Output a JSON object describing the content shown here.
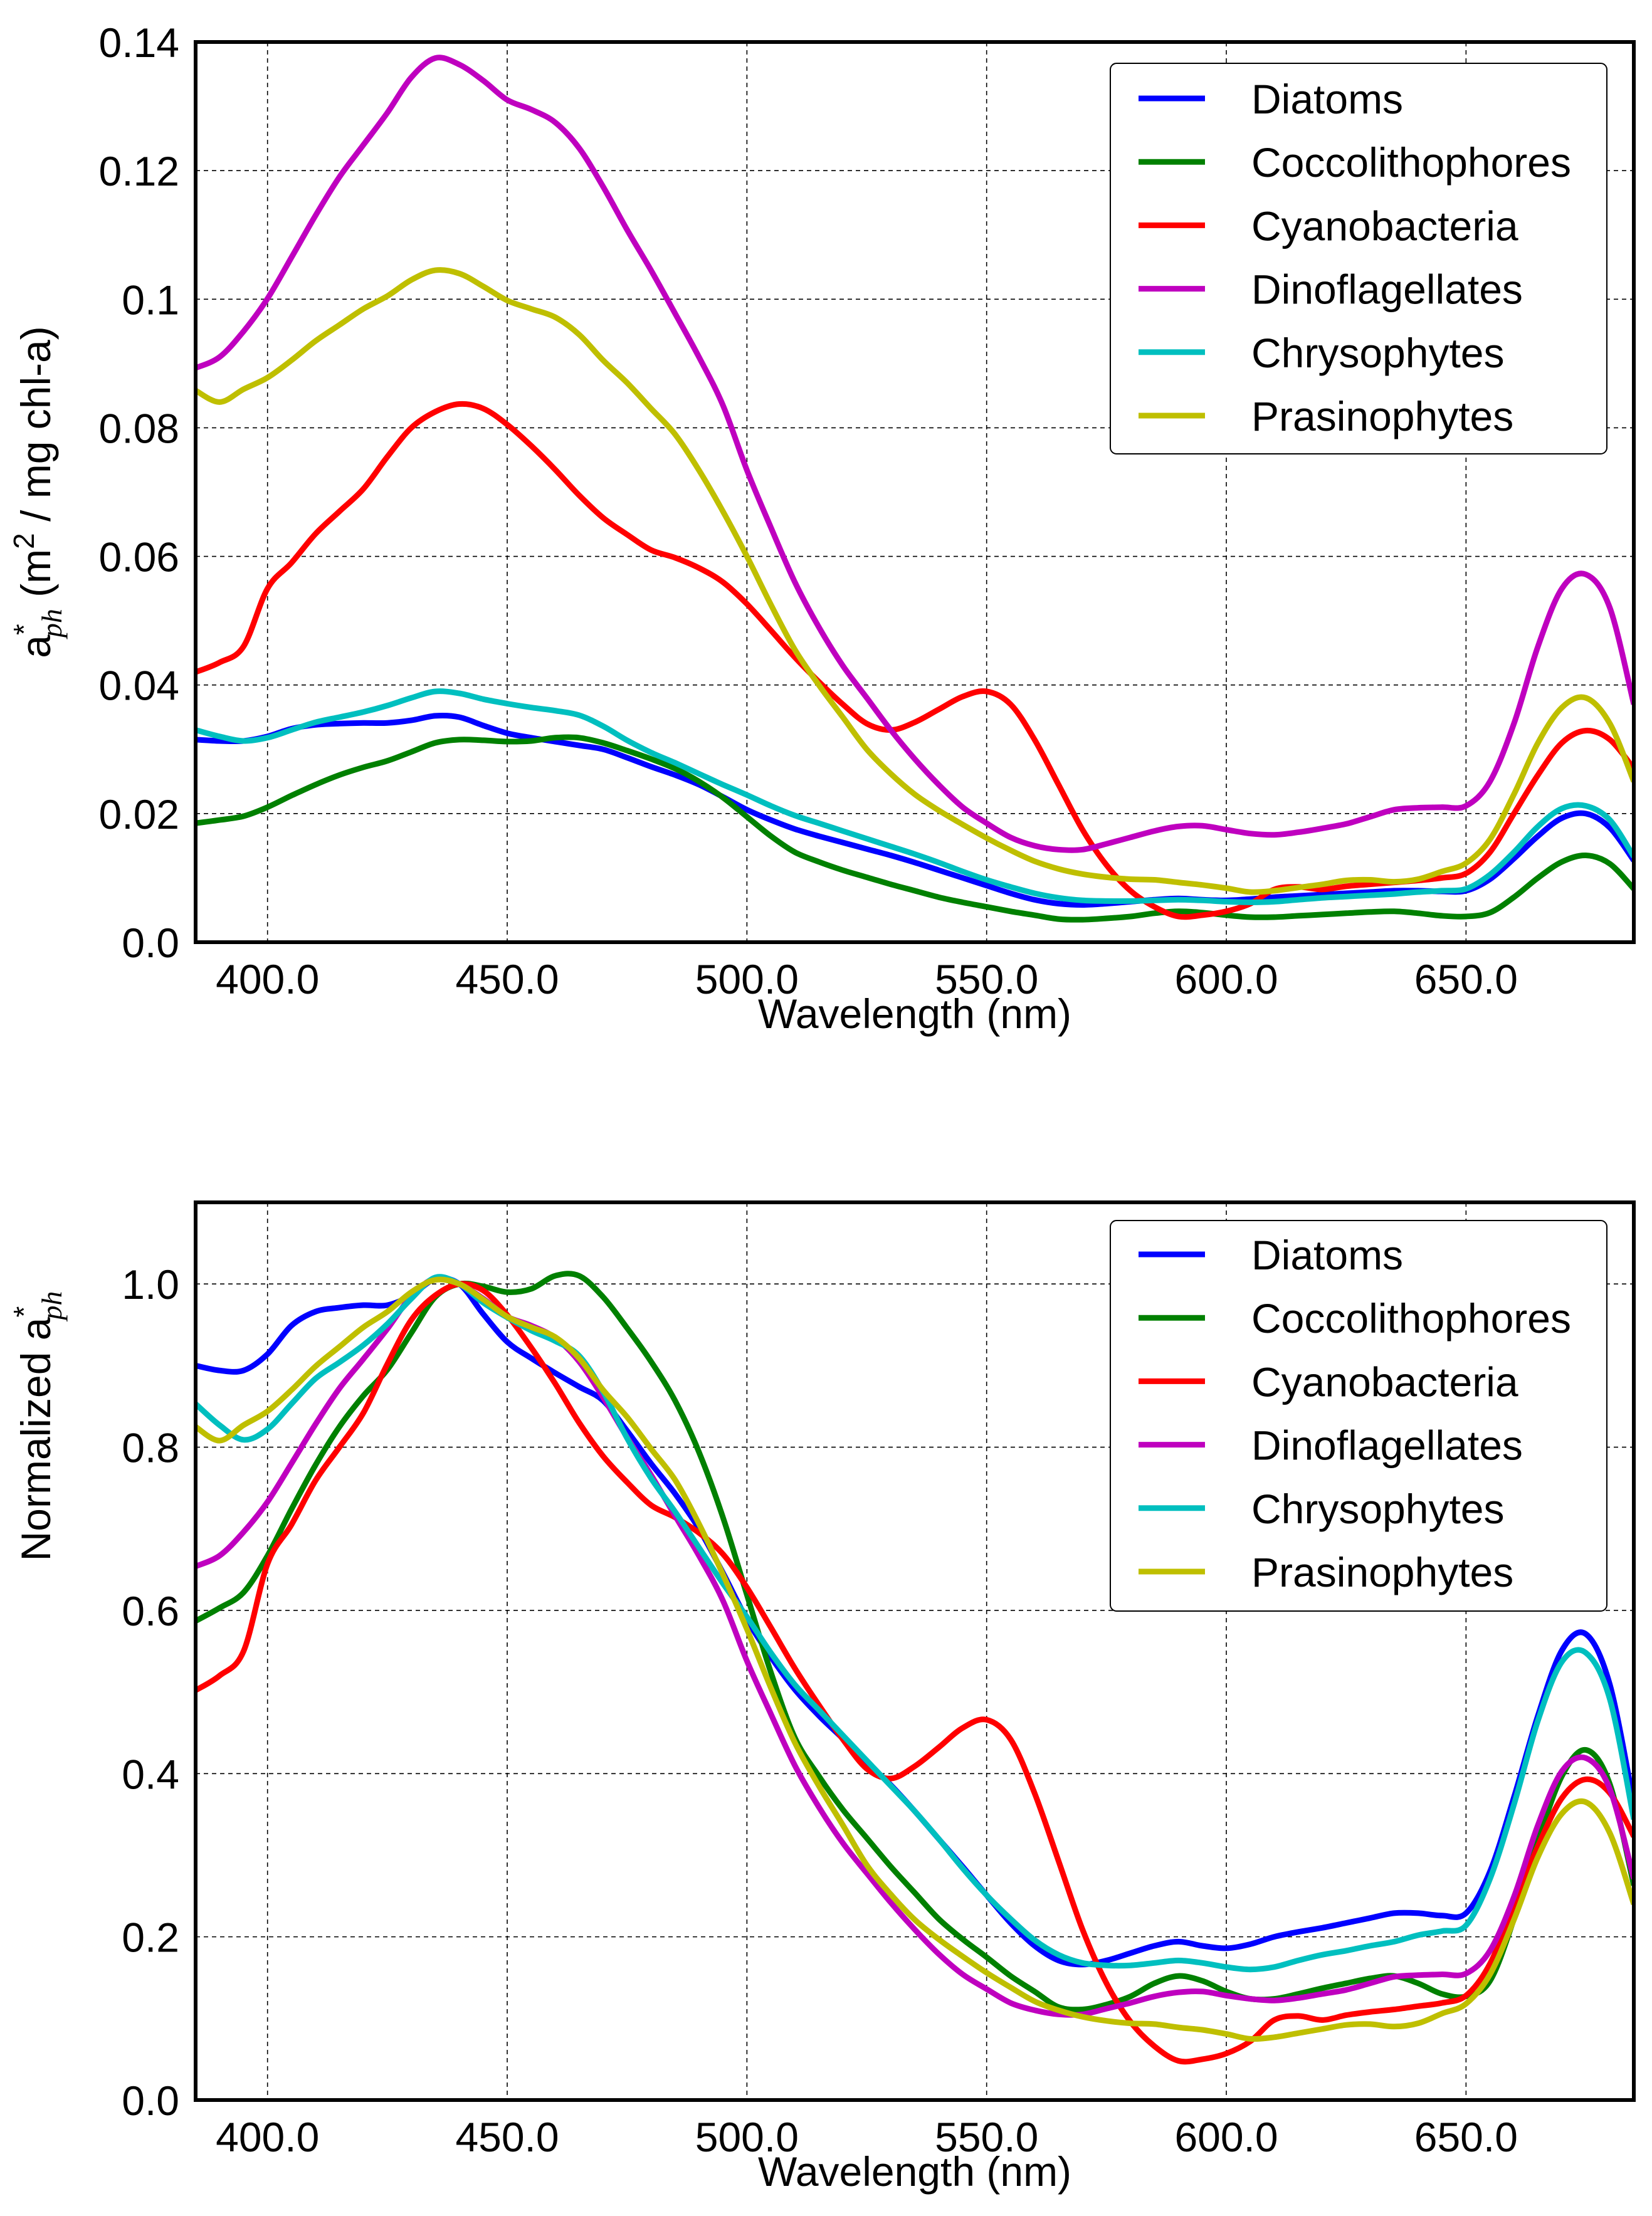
{
  "chart_data": [
    {
      "type": "line",
      "title": "",
      "xlabel": "Wavelength (nm)",
      "ylabel": "a*_ph (m^2 / mg chl-a)",
      "ylabel_parts": {
        "main": "a",
        "sup": "*",
        "sub": "ph",
        "rest": " (m",
        "unit_sup": "2",
        "tail": " / mg chl-a)"
      },
      "xlim": [
        385,
        685
      ],
      "ylim": [
        0,
        0.14
      ],
      "xticks": [
        400,
        450,
        500,
        550,
        600,
        650
      ],
      "xtick_labels": [
        "400.0",
        "450.0",
        "500.0",
        "550.0",
        "600.0",
        "650.0"
      ],
      "yticks": [
        0,
        0.02,
        0.04,
        0.06,
        0.08,
        0.1,
        0.12,
        0.14
      ],
      "ytick_labels": [
        "0.0",
        "0.02",
        "0.04",
        "0.06",
        "0.08",
        "0.1",
        "0.12",
        "0.14"
      ],
      "grid": true,
      "legend_position": "top-right",
      "x": [
        385,
        390,
        395,
        400,
        405,
        410,
        415,
        420,
        425,
        430,
        435,
        440,
        445,
        450,
        455,
        460,
        465,
        470,
        475,
        480,
        485,
        490,
        495,
        500,
        505,
        510,
        515,
        520,
        525,
        530,
        535,
        540,
        545,
        550,
        555,
        560,
        565,
        570,
        575,
        580,
        585,
        590,
        595,
        600,
        605,
        610,
        615,
        620,
        625,
        630,
        635,
        640,
        645,
        650,
        655,
        660,
        665,
        670,
        675,
        680,
        685
      ],
      "series": [
        {
          "name": "Diatoms",
          "color": "#0000ff",
          "values": [
            0.0315,
            0.0313,
            0.0313,
            0.032,
            0.0332,
            0.0338,
            0.034,
            0.0341,
            0.0341,
            0.0345,
            0.0352,
            0.035,
            0.0337,
            0.0325,
            0.0318,
            0.0312,
            0.0306,
            0.03,
            0.0287,
            0.0273,
            0.026,
            0.0245,
            0.0226,
            0.0206,
            0.019,
            0.0176,
            0.0165,
            0.0155,
            0.0145,
            0.0135,
            0.0124,
            0.0112,
            0.01,
            0.0088,
            0.0076,
            0.0066,
            0.006,
            0.0058,
            0.006,
            0.0063,
            0.0066,
            0.0068,
            0.0066,
            0.0065,
            0.0067,
            0.007,
            0.0072,
            0.0074,
            0.0076,
            0.0078,
            0.008,
            0.008,
            0.0079,
            0.008,
            0.0098,
            0.013,
            0.0165,
            0.0193,
            0.02,
            0.0178,
            0.0127
          ]
        },
        {
          "name": "Coccolithophores",
          "color": "#008000",
          "values": [
            0.0185,
            0.019,
            0.0196,
            0.021,
            0.0228,
            0.0245,
            0.026,
            0.0272,
            0.0282,
            0.0296,
            0.031,
            0.0315,
            0.0314,
            0.0312,
            0.0313,
            0.0318,
            0.0318,
            0.031,
            0.0298,
            0.0285,
            0.027,
            0.025,
            0.0225,
            0.0195,
            0.0165,
            0.014,
            0.0125,
            0.0112,
            0.0101,
            0.009,
            0.008,
            0.007,
            0.0062,
            0.0055,
            0.0048,
            0.0042,
            0.0036,
            0.0035,
            0.0037,
            0.004,
            0.0045,
            0.0048,
            0.0046,
            0.0042,
            0.0039,
            0.0039,
            0.0041,
            0.0043,
            0.0045,
            0.0047,
            0.0048,
            0.0045,
            0.0041,
            0.004,
            0.0046,
            0.007,
            0.01,
            0.0125,
            0.0135,
            0.0122,
            0.0083
          ]
        },
        {
          "name": "Cyanobacteria",
          "color": "#ff0000",
          "values": [
            0.042,
            0.0435,
            0.046,
            0.055,
            0.059,
            0.0635,
            0.067,
            0.0705,
            0.0755,
            0.08,
            0.0825,
            0.0837,
            0.083,
            0.0805,
            0.0772,
            0.0735,
            0.0695,
            0.066,
            0.0634,
            0.061,
            0.0598,
            0.0582,
            0.056,
            0.0526,
            0.0485,
            0.0443,
            0.0405,
            0.037,
            0.034,
            0.033,
            0.0342,
            0.0362,
            0.0382,
            0.039,
            0.037,
            0.0315,
            0.0245,
            0.0175,
            0.012,
            0.008,
            0.0055,
            0.004,
            0.0042,
            0.0048,
            0.006,
            0.0082,
            0.0086,
            0.0082,
            0.0087,
            0.009,
            0.0093,
            0.0096,
            0.01,
            0.0107,
            0.014,
            0.02,
            0.026,
            0.031,
            0.0329,
            0.0315,
            0.027
          ]
        },
        {
          "name": "Dinoflagellates",
          "color": "#bf00bf",
          "values": [
            0.0893,
            0.091,
            0.095,
            0.1001,
            0.1065,
            0.113,
            0.119,
            0.124,
            0.129,
            0.1345,
            0.1375,
            0.1365,
            0.134,
            0.131,
            0.1295,
            0.1275,
            0.1235,
            0.1175,
            0.1108,
            0.1045,
            0.0978,
            0.091,
            0.0835,
            0.0734,
            0.0645,
            0.056,
            0.049,
            0.043,
            0.038,
            0.033,
            0.0285,
            0.0245,
            0.021,
            0.0185,
            0.0163,
            0.015,
            0.0144,
            0.0144,
            0.0153,
            0.0163,
            0.0173,
            0.018,
            0.0181,
            0.0175,
            0.0169,
            0.0167,
            0.0171,
            0.0177,
            0.0184,
            0.0195,
            0.0206,
            0.0209,
            0.021,
            0.0212,
            0.025,
            0.034,
            0.046,
            0.055,
            0.0572,
            0.052,
            0.037
          ]
        },
        {
          "name": "Chrysophytes",
          "color": "#00bfbf",
          "values": [
            0.033,
            0.032,
            0.0313,
            0.0318,
            0.033,
            0.0342,
            0.035,
            0.0358,
            0.0368,
            0.038,
            0.039,
            0.0387,
            0.0378,
            0.0371,
            0.0365,
            0.036,
            0.0353,
            0.0336,
            0.0314,
            0.0295,
            0.0279,
            0.0262,
            0.0245,
            0.0229,
            0.0212,
            0.0197,
            0.0185,
            0.0173,
            0.0161,
            0.0149,
            0.0137,
            0.0124,
            0.011,
            0.0097,
            0.0086,
            0.0076,
            0.0069,
            0.0065,
            0.0064,
            0.0064,
            0.0065,
            0.0066,
            0.0065,
            0.0063,
            0.0062,
            0.0063,
            0.0066,
            0.0069,
            0.0071,
            0.0073,
            0.0075,
            0.0078,
            0.008,
            0.0083,
            0.0105,
            0.014,
            0.018,
            0.0208,
            0.0212,
            0.019,
            0.0133
          ]
        },
        {
          "name": "Prasinophytes",
          "color": "#bfbf00",
          "values": [
            0.0858,
            0.084,
            0.086,
            0.0878,
            0.0905,
            0.0935,
            0.096,
            0.0985,
            0.1005,
            0.103,
            0.1045,
            0.104,
            0.102,
            0.0998,
            0.0985,
            0.0972,
            0.0945,
            0.0905,
            0.087,
            0.083,
            0.079,
            0.0734,
            0.067,
            0.06,
            0.0525,
            0.0455,
            0.04,
            0.035,
            0.03,
            0.0262,
            0.023,
            0.0205,
            0.0183,
            0.0162,
            0.0143,
            0.0126,
            0.0114,
            0.0106,
            0.0101,
            0.0098,
            0.0097,
            0.0093,
            0.0089,
            0.0084,
            0.0078,
            0.008,
            0.0085,
            0.009,
            0.0096,
            0.0097,
            0.0094,
            0.0098,
            0.011,
            0.0123,
            0.016,
            0.023,
            0.031,
            0.0365,
            0.038,
            0.034,
            0.025
          ]
        }
      ]
    },
    {
      "type": "line",
      "title": "",
      "xlabel": "Wavelength (nm)",
      "ylabel": "Normalized a*_ph",
      "ylabel_parts": {
        "main": "Normalized a",
        "sup": "*",
        "sub": "ph"
      },
      "xlim": [
        385,
        685
      ],
      "ylim": [
        0,
        1.1
      ],
      "xticks": [
        400,
        450,
        500,
        550,
        600,
        650
      ],
      "xtick_labels": [
        "400.0",
        "450.0",
        "500.0",
        "550.0",
        "600.0",
        "650.0"
      ],
      "yticks": [
        0,
        0.2,
        0.4,
        0.6,
        0.8,
        1.0
      ],
      "ytick_labels": [
        "0.0",
        "0.2",
        "0.4",
        "0.6",
        "0.8",
        "1.0"
      ],
      "grid": true,
      "legend_position": "top-right",
      "x": [
        385,
        390,
        395,
        400,
        405,
        410,
        415,
        420,
        425,
        430,
        435,
        440,
        445,
        450,
        455,
        460,
        465,
        470,
        475,
        480,
        485,
        490,
        495,
        500,
        505,
        510,
        515,
        520,
        525,
        530,
        535,
        540,
        545,
        550,
        555,
        560,
        565,
        570,
        575,
        580,
        585,
        590,
        595,
        600,
        605,
        610,
        615,
        620,
        625,
        630,
        635,
        640,
        645,
        650,
        655,
        660,
        665,
        670,
        675,
        680,
        685
      ],
      "series": [
        {
          "name": "Diatoms",
          "color": "#0000ff",
          "values": [
            0.9,
            0.894,
            0.894,
            0.914,
            0.949,
            0.966,
            0.971,
            0.974,
            0.974,
            0.986,
            1.006,
            1.0,
            0.963,
            0.929,
            0.909,
            0.891,
            0.874,
            0.857,
            0.82,
            0.78,
            0.743,
            0.7,
            0.646,
            0.589,
            0.543,
            0.503,
            0.471,
            0.443,
            0.414,
            0.386,
            0.354,
            0.32,
            0.286,
            0.251,
            0.217,
            0.189,
            0.171,
            0.166,
            0.171,
            0.18,
            0.189,
            0.194,
            0.189,
            0.186,
            0.191,
            0.2,
            0.206,
            0.211,
            0.217,
            0.223,
            0.229,
            0.229,
            0.226,
            0.229,
            0.28,
            0.371,
            0.471,
            0.551,
            0.571,
            0.509,
            0.363
          ]
        },
        {
          "name": "Coccolithophores",
          "color": "#008000",
          "values": [
            0.587,
            0.603,
            0.622,
            0.667,
            0.724,
            0.778,
            0.825,
            0.863,
            0.895,
            0.94,
            0.984,
            1.0,
            0.997,
            0.99,
            0.994,
            1.01,
            1.01,
            0.984,
            0.946,
            0.905,
            0.857,
            0.794,
            0.714,
            0.619,
            0.524,
            0.444,
            0.397,
            0.356,
            0.321,
            0.286,
            0.254,
            0.222,
            0.197,
            0.175,
            0.152,
            0.133,
            0.114,
            0.111,
            0.117,
            0.127,
            0.143,
            0.152,
            0.146,
            0.133,
            0.124,
            0.124,
            0.13,
            0.137,
            0.143,
            0.149,
            0.152,
            0.143,
            0.13,
            0.127,
            0.146,
            0.222,
            0.317,
            0.397,
            0.429,
            0.387,
            0.263
          ]
        },
        {
          "name": "Cyanobacteria",
          "color": "#ff0000",
          "values": [
            0.502,
            0.52,
            0.55,
            0.657,
            0.705,
            0.759,
            0.8,
            0.842,
            0.902,
            0.956,
            0.986,
            1.0,
            0.992,
            0.962,
            0.922,
            0.878,
            0.83,
            0.789,
            0.757,
            0.729,
            0.714,
            0.695,
            0.669,
            0.628,
            0.579,
            0.529,
            0.484,
            0.442,
            0.406,
            0.394,
            0.409,
            0.432,
            0.456,
            0.466,
            0.442,
            0.376,
            0.293,
            0.209,
            0.143,
            0.096,
            0.066,
            0.048,
            0.05,
            0.057,
            0.072,
            0.098,
            0.103,
            0.098,
            0.104,
            0.108,
            0.111,
            0.115,
            0.119,
            0.128,
            0.167,
            0.239,
            0.311,
            0.37,
            0.393,
            0.376,
            0.323
          ]
        },
        {
          "name": "Dinoflagellates",
          "color": "#bf00bf",
          "values": [
            0.654,
            0.667,
            0.696,
            0.733,
            0.78,
            0.828,
            0.872,
            0.908,
            0.945,
            0.985,
            1.007,
            1.0,
            0.982,
            0.96,
            0.949,
            0.934,
            0.905,
            0.861,
            0.812,
            0.766,
            0.716,
            0.667,
            0.612,
            0.538,
            0.473,
            0.41,
            0.359,
            0.315,
            0.278,
            0.242,
            0.209,
            0.179,
            0.154,
            0.136,
            0.119,
            0.11,
            0.105,
            0.105,
            0.112,
            0.119,
            0.127,
            0.132,
            0.133,
            0.128,
            0.124,
            0.122,
            0.125,
            0.13,
            0.135,
            0.143,
            0.151,
            0.153,
            0.154,
            0.155,
            0.183,
            0.249,
            0.337,
            0.403,
            0.419,
            0.381,
            0.271
          ]
        },
        {
          "name": "Chrysophytes",
          "color": "#00bfbf",
          "values": [
            0.853,
            0.827,
            0.809,
            0.822,
            0.853,
            0.884,
            0.904,
            0.925,
            0.951,
            0.982,
            1.008,
            1.0,
            0.977,
            0.959,
            0.943,
            0.93,
            0.912,
            0.868,
            0.811,
            0.762,
            0.721,
            0.677,
            0.633,
            0.592,
            0.548,
            0.509,
            0.478,
            0.447,
            0.416,
            0.385,
            0.354,
            0.32,
            0.284,
            0.251,
            0.222,
            0.196,
            0.178,
            0.168,
            0.165,
            0.165,
            0.168,
            0.171,
            0.168,
            0.163,
            0.16,
            0.163,
            0.171,
            0.178,
            0.183,
            0.189,
            0.194,
            0.202,
            0.207,
            0.214,
            0.271,
            0.362,
            0.465,
            0.537,
            0.548,
            0.491,
            0.344
          ]
        },
        {
          "name": "Prasinophytes",
          "color": "#bfbf00",
          "values": [
            0.825,
            0.808,
            0.827,
            0.844,
            0.87,
            0.899,
            0.923,
            0.947,
            0.966,
            0.99,
            1.005,
            1.0,
            0.981,
            0.96,
            0.947,
            0.935,
            0.909,
            0.87,
            0.837,
            0.798,
            0.76,
            0.706,
            0.644,
            0.577,
            0.505,
            0.438,
            0.385,
            0.337,
            0.288,
            0.252,
            0.221,
            0.197,
            0.176,
            0.156,
            0.138,
            0.121,
            0.11,
            0.102,
            0.097,
            0.094,
            0.093,
            0.089,
            0.086,
            0.081,
            0.075,
            0.077,
            0.082,
            0.087,
            0.092,
            0.093,
            0.09,
            0.094,
            0.106,
            0.118,
            0.154,
            0.221,
            0.298,
            0.351,
            0.365,
            0.327,
            0.24
          ]
        }
      ]
    }
  ]
}
